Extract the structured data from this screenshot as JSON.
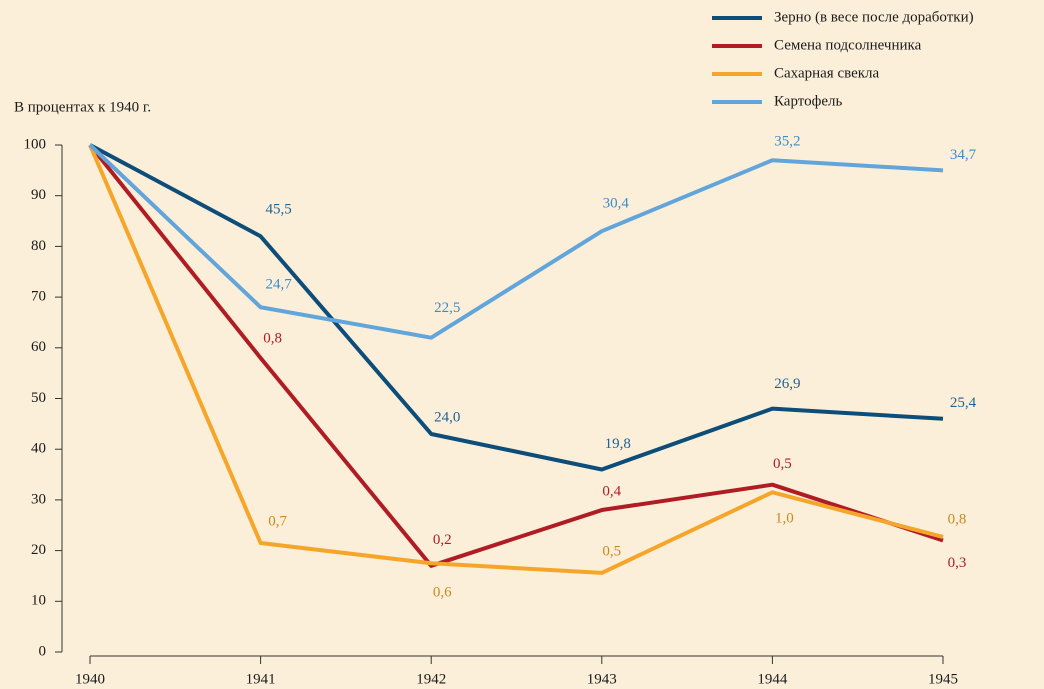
{
  "chart_data": {
    "type": "line",
    "y_label": "В процентах к 1940 г.",
    "categories": [
      "1940",
      "1941",
      "1942",
      "1943",
      "1944",
      "1945"
    ],
    "ylim": [
      0,
      100
    ],
    "yticks": [
      0,
      10,
      20,
      30,
      40,
      50,
      60,
      70,
      80,
      90,
      100
    ],
    "legend": "top-right",
    "series": [
      {
        "name": "Зерно (в весе после доработки)",
        "color": "#0d4d7a",
        "label_color": "#1f6296",
        "values": [
          100,
          82,
          43,
          36,
          48,
          46
        ],
        "labels": [
          null,
          "45,5",
          "24,0",
          "19,8",
          "26,9",
          "25,4"
        ]
      },
      {
        "name": "Семена подсолнечника",
        "color": "#b01c24",
        "label_color": "#b01c24",
        "values": [
          100,
          58,
          17,
          28,
          33,
          22
        ],
        "labels": [
          null,
          "0,8",
          "0,2",
          "0,4",
          "0,5",
          "0,3"
        ]
      },
      {
        "name": "Сахарная свекла",
        "color": "#f5a62a",
        "label_color": "#c88a1c",
        "values": [
          100,
          21.5,
          17.5,
          15.6,
          31.5,
          22.7
        ],
        "labels": [
          null,
          "0,7",
          "0,6",
          "0,5",
          "1,0",
          "0,8"
        ]
      },
      {
        "name": "Картофель",
        "color": "#62a5db",
        "label_color": "#3a8ccc",
        "values": [
          100,
          68,
          62,
          83,
          97,
          95
        ],
        "labels": [
          null,
          "24,7",
          "22,5",
          "30,4",
          "35,2",
          "34,7"
        ]
      }
    ]
  }
}
